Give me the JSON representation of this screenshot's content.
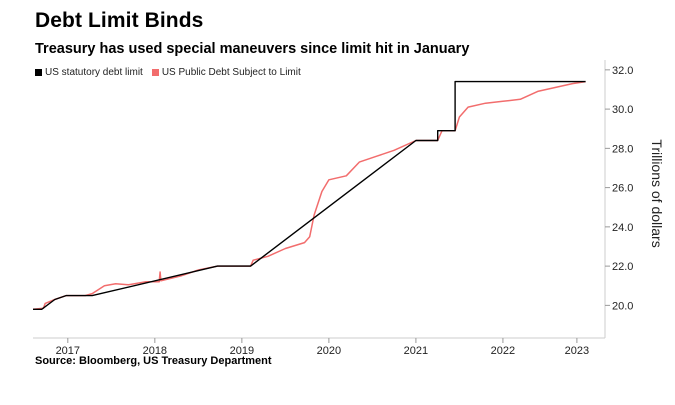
{
  "header": {
    "title": "Debt Limit Binds",
    "subtitle": "Treasury has used special maneuvers since limit hit in January"
  },
  "footer": {
    "source": "Source: Bloomberg, US Treasury Department"
  },
  "colors": {
    "limit": "#000000",
    "debt": "#f26d6d",
    "axis": "#cccccc"
  },
  "chart_data": {
    "type": "line",
    "title": "Debt Limit Binds",
    "subtitle": "Treasury has used special maneuvers since limit hit in January",
    "xlabel": "",
    "ylabel": "Trillions of dollars",
    "x_ticks": [
      {
        "label": "2017",
        "value": 2017.0
      },
      {
        "label": "2018",
        "value": 2018.0
      },
      {
        "label": "2019",
        "value": 2019.0
      },
      {
        "label": "2020",
        "value": 2020.0
      },
      {
        "label": "2021",
        "value": 2021.0
      },
      {
        "label": "2022",
        "value": 2022.0
      },
      {
        "label": "2023",
        "value": 2022.85
      }
    ],
    "y_ticks": [
      {
        "label": "20.0",
        "value": 20.0
      },
      {
        "label": "22.0",
        "value": 22.0
      },
      {
        "label": "24.0",
        "value": 24.0
      },
      {
        "label": "26.0",
        "value": 26.0
      },
      {
        "label": "28.0",
        "value": 28.0
      },
      {
        "label": "30.0",
        "value": 30.0
      },
      {
        "label": "32.0",
        "value": 32.0
      }
    ],
    "xlim": [
      2016.6,
      2023.15
    ],
    "ylim": [
      19.0,
      32.4
    ],
    "grid": false,
    "legend_position": "top-left",
    "series": [
      {
        "name": "US statutory debt limit",
        "color": "#000000",
        "points": [
          [
            2016.6,
            19.8
          ],
          [
            2016.7,
            19.8
          ],
          [
            2016.85,
            20.3
          ],
          [
            2016.98,
            20.5
          ],
          [
            2017.28,
            20.5
          ],
          [
            2018.72,
            22.0
          ],
          [
            2019.1,
            22.0
          ],
          [
            2020.05,
            25.2
          ],
          [
            2021.0,
            28.4
          ],
          [
            2021.25,
            28.4
          ],
          [
            2021.25,
            28.9
          ],
          [
            2021.45,
            28.9
          ],
          [
            2021.45,
            31.4
          ],
          [
            2022.95,
            31.4
          ]
        ]
      },
      {
        "name": "US Public Debt Subject to Limit",
        "color": "#f26d6d",
        "points": [
          [
            2016.6,
            19.8
          ],
          [
            2016.72,
            19.85
          ],
          [
            2016.74,
            20.1
          ],
          [
            2016.85,
            20.3
          ],
          [
            2016.98,
            20.5
          ],
          [
            2017.2,
            20.5
          ],
          [
            2017.28,
            20.6
          ],
          [
            2017.42,
            21.0
          ],
          [
            2017.55,
            21.1
          ],
          [
            2017.7,
            21.05
          ],
          [
            2017.9,
            21.2
          ],
          [
            2018.05,
            21.2
          ],
          [
            2018.06,
            21.7
          ],
          [
            2018.07,
            21.25
          ],
          [
            2018.3,
            21.5
          ],
          [
            2018.5,
            21.8
          ],
          [
            2018.72,
            22.0
          ],
          [
            2019.1,
            22.0
          ],
          [
            2019.13,
            22.3
          ],
          [
            2019.3,
            22.5
          ],
          [
            2019.5,
            22.9
          ],
          [
            2019.72,
            23.2
          ],
          [
            2019.78,
            23.5
          ],
          [
            2019.83,
            24.6
          ],
          [
            2019.92,
            25.8
          ],
          [
            2020.0,
            26.4
          ],
          [
            2020.2,
            26.6
          ],
          [
            2020.35,
            27.3
          ],
          [
            2020.55,
            27.6
          ],
          [
            2020.75,
            27.9
          ],
          [
            2021.0,
            28.4
          ],
          [
            2021.25,
            28.4
          ],
          [
            2021.3,
            28.9
          ],
          [
            2021.45,
            28.9
          ],
          [
            2021.5,
            29.6
          ],
          [
            2021.6,
            30.1
          ],
          [
            2021.8,
            30.3
          ],
          [
            2022.0,
            30.4
          ],
          [
            2022.2,
            30.5
          ],
          [
            2022.4,
            30.9
          ],
          [
            2022.6,
            31.1
          ],
          [
            2022.8,
            31.3
          ],
          [
            2022.95,
            31.4
          ]
        ]
      }
    ]
  }
}
